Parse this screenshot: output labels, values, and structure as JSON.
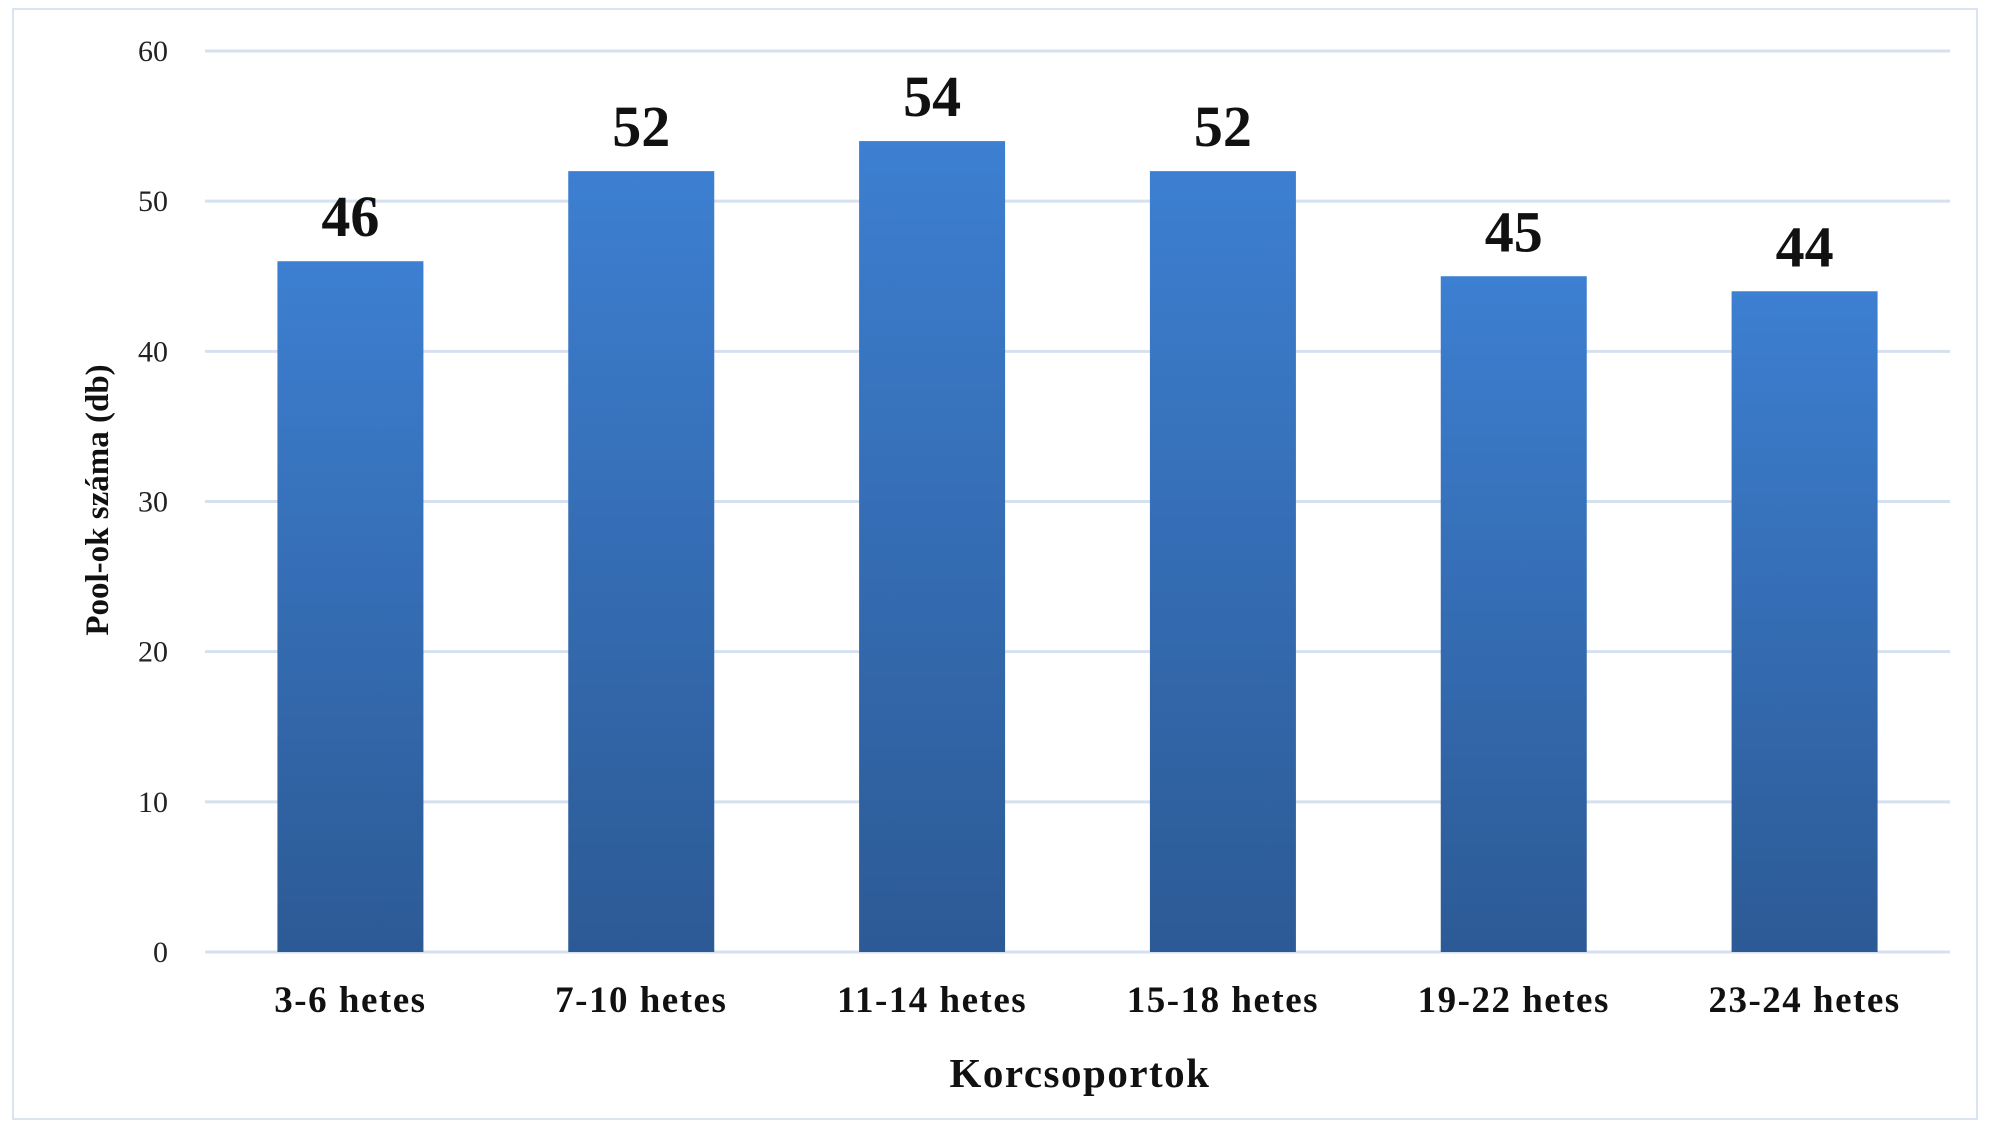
{
  "chart_data": {
    "type": "bar",
    "categories": [
      "3-6 hetes",
      "7-10 hetes",
      "11-14 hetes",
      "15-18 hetes",
      "19-22 hetes",
      "23-24 hetes"
    ],
    "values": [
      46,
      52,
      54,
      52,
      45,
      44
    ],
    "xlabel": "Korcsoportok",
    "ylabel": "Pool-ok száma (db)",
    "ylim": [
      0,
      60
    ],
    "yticks": [
      0,
      10,
      20,
      30,
      40,
      50,
      60
    ],
    "grid": true,
    "legend": "none",
    "data_labels": true,
    "colors": {
      "bar_top": "#3d7fd1",
      "bar_bottom": "#2c5a95",
      "grid": "#d6e1f0",
      "frame": "#dbe4f1"
    }
  }
}
